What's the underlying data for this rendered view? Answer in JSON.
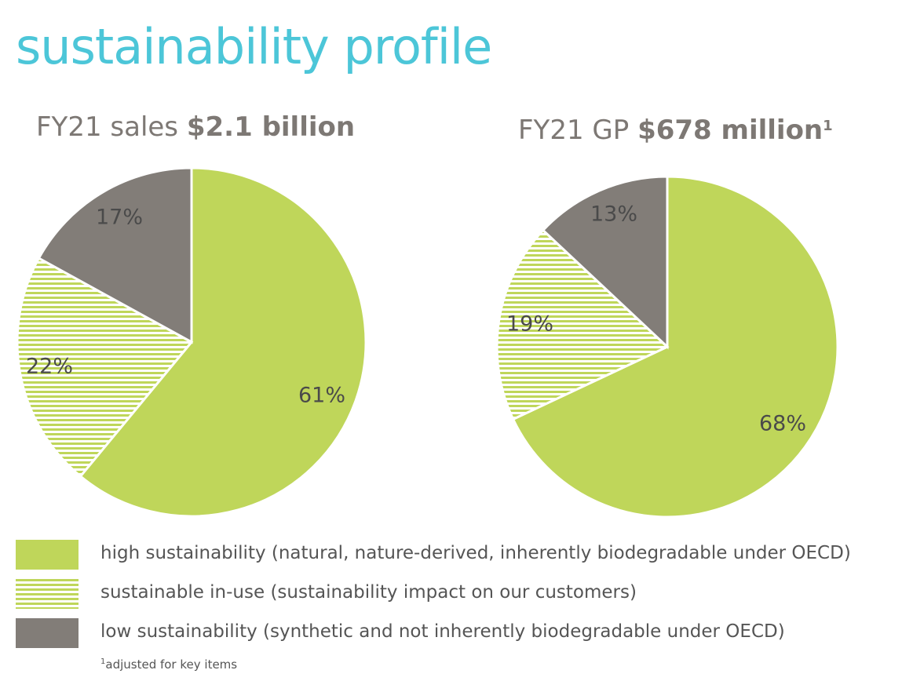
{
  "page": {
    "title": "sustainability profile",
    "title_color": "#4cc6d8"
  },
  "colors": {
    "high": "#bfd65a",
    "in_use": "#bfd65a",
    "low": "#827d78"
  },
  "legend": [
    {
      "key": "high",
      "label": "high sustainability (natural, nature-derived, inherently biodegradable under OECD)",
      "pattern": "solid"
    },
    {
      "key": "in_use",
      "label": "sustainable in-use (sustainability impact on our customers)",
      "pattern": "striped"
    },
    {
      "key": "low",
      "label": "low sustainability (synthetic and not inherently biodegradable under OECD)",
      "pattern": "solid"
    }
  ],
  "footnote": {
    "marker": "1",
    "text": "adjusted for key items"
  },
  "chart_data": [
    {
      "type": "pie",
      "title_prefix": "FY21 sales ",
      "title_value": "$2.1 billion",
      "title_sup": "",
      "slices": [
        {
          "key": "high",
          "value": 61,
          "label": "61%"
        },
        {
          "key": "in_use",
          "value": 22,
          "label": "22%"
        },
        {
          "key": "low",
          "value": 17,
          "label": "17%"
        }
      ]
    },
    {
      "type": "pie",
      "title_prefix": "FY21 GP ",
      "title_value": "$678 million",
      "title_sup": "1",
      "slices": [
        {
          "key": "high",
          "value": 68,
          "label": "68%"
        },
        {
          "key": "in_use",
          "value": 19,
          "label": "19%"
        },
        {
          "key": "low",
          "value": 13,
          "label": "13%"
        }
      ]
    }
  ]
}
